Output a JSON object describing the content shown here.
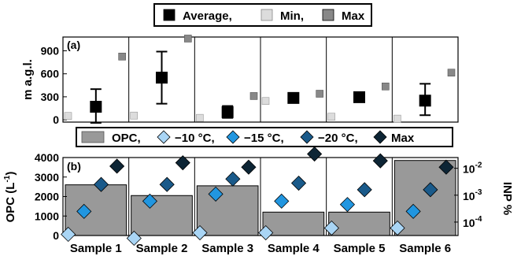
{
  "chart_data": [
    {
      "type": "scatter",
      "panel_label": "(a)",
      "ylabel": "m a.g.l.",
      "ylim": [
        -30,
        1080
      ],
      "yticks": [
        0,
        300,
        600,
        900
      ],
      "legend": {
        "placement": "top",
        "entries": [
          {
            "label": "Average,",
            "color": "#000000"
          },
          {
            "label": "Min,",
            "color": "#dcdcdc"
          },
          {
            "label": "Max",
            "color": "#888888"
          }
        ]
      },
      "categories": [
        "Sample 1",
        "Sample 2",
        "Sample 3",
        "Sample 4",
        "Sample 5",
        "Sample 6"
      ],
      "series": [
        {
          "name": "Average",
          "values": [
            170,
            550,
            100,
            285,
            295,
            250
          ],
          "err_low": [
            -40,
            210,
            25,
            null,
            null,
            60
          ],
          "err_high": [
            400,
            890,
            180,
            null,
            null,
            470
          ]
        },
        {
          "name": "Min",
          "values": [
            50,
            55,
            25,
            245,
            40,
            15
          ]
        },
        {
          "name": "Max",
          "values": [
            825,
            1060,
            310,
            340,
            435,
            615
          ]
        }
      ]
    },
    {
      "type": "bar",
      "panel_label": "(b)",
      "ylabel_left": "OPC (L-1)",
      "ylabel_left_text": "OPC (L",
      "ylabel_left_sup": "-1",
      "ylabel_left_tail": ")",
      "ylabel_right": "INP %",
      "ylim_left": [
        0,
        4000
      ],
      "yticks_left": [
        0,
        1000,
        2000,
        3000,
        4000
      ],
      "ylim_right_log10": [
        -4.5,
        -1.6
      ],
      "yticks_right": [
        {
          "base": "10",
          "exp": "-4",
          "value": 0.0001
        },
        {
          "base": "10",
          "exp": "-3",
          "value": 0.001
        },
        {
          "base": "10",
          "exp": "-2",
          "value": 0.01
        }
      ],
      "legend": {
        "placement": "top",
        "entries": [
          {
            "label": "OPC,",
            "color": "#999999",
            "shape": "rect"
          },
          {
            "label": "−10 °C,",
            "color": "#a9d5f5",
            "shape": "diamond"
          },
          {
            "label": "−15 °C,",
            "color": "#2196e0",
            "shape": "diamond"
          },
          {
            "label": "−20 °C,",
            "color": "#1a5a8a",
            "shape": "diamond"
          },
          {
            "label": "Max",
            "color": "#0d2535",
            "shape": "diamond"
          }
        ]
      },
      "categories": [
        "Sample 1",
        "Sample 2",
        "Sample 3",
        "Sample 4",
        "Sample 5",
        "Sample 6"
      ],
      "opc_values": [
        2600,
        2050,
        2550,
        1200,
        1200,
        3850
      ],
      "inp_series": [
        {
          "name": "−10 °C",
          "color": "#a9d5f5",
          "values": [
            3.5e-05,
            2.5e-05,
            4e-05,
            4e-05,
            6e-05,
            6e-05
          ]
        },
        {
          "name": "−15 °C",
          "color": "#2196e0",
          "values": [
            0.00025,
            0.0006,
            0.0011,
            0.0006,
            0.00045,
            0.00025
          ]
        },
        {
          "name": "−20 °C",
          "color": "#1a5a8a",
          "values": [
            0.0025,
            0.0025,
            0.004,
            0.0028,
            0.0016,
            0.0016
          ]
        },
        {
          "name": "Max",
          "color": "#0d2535",
          "values": [
            0.012,
            0.016,
            0.011,
            0.034,
            0.019,
            0.011
          ]
        }
      ]
    }
  ]
}
